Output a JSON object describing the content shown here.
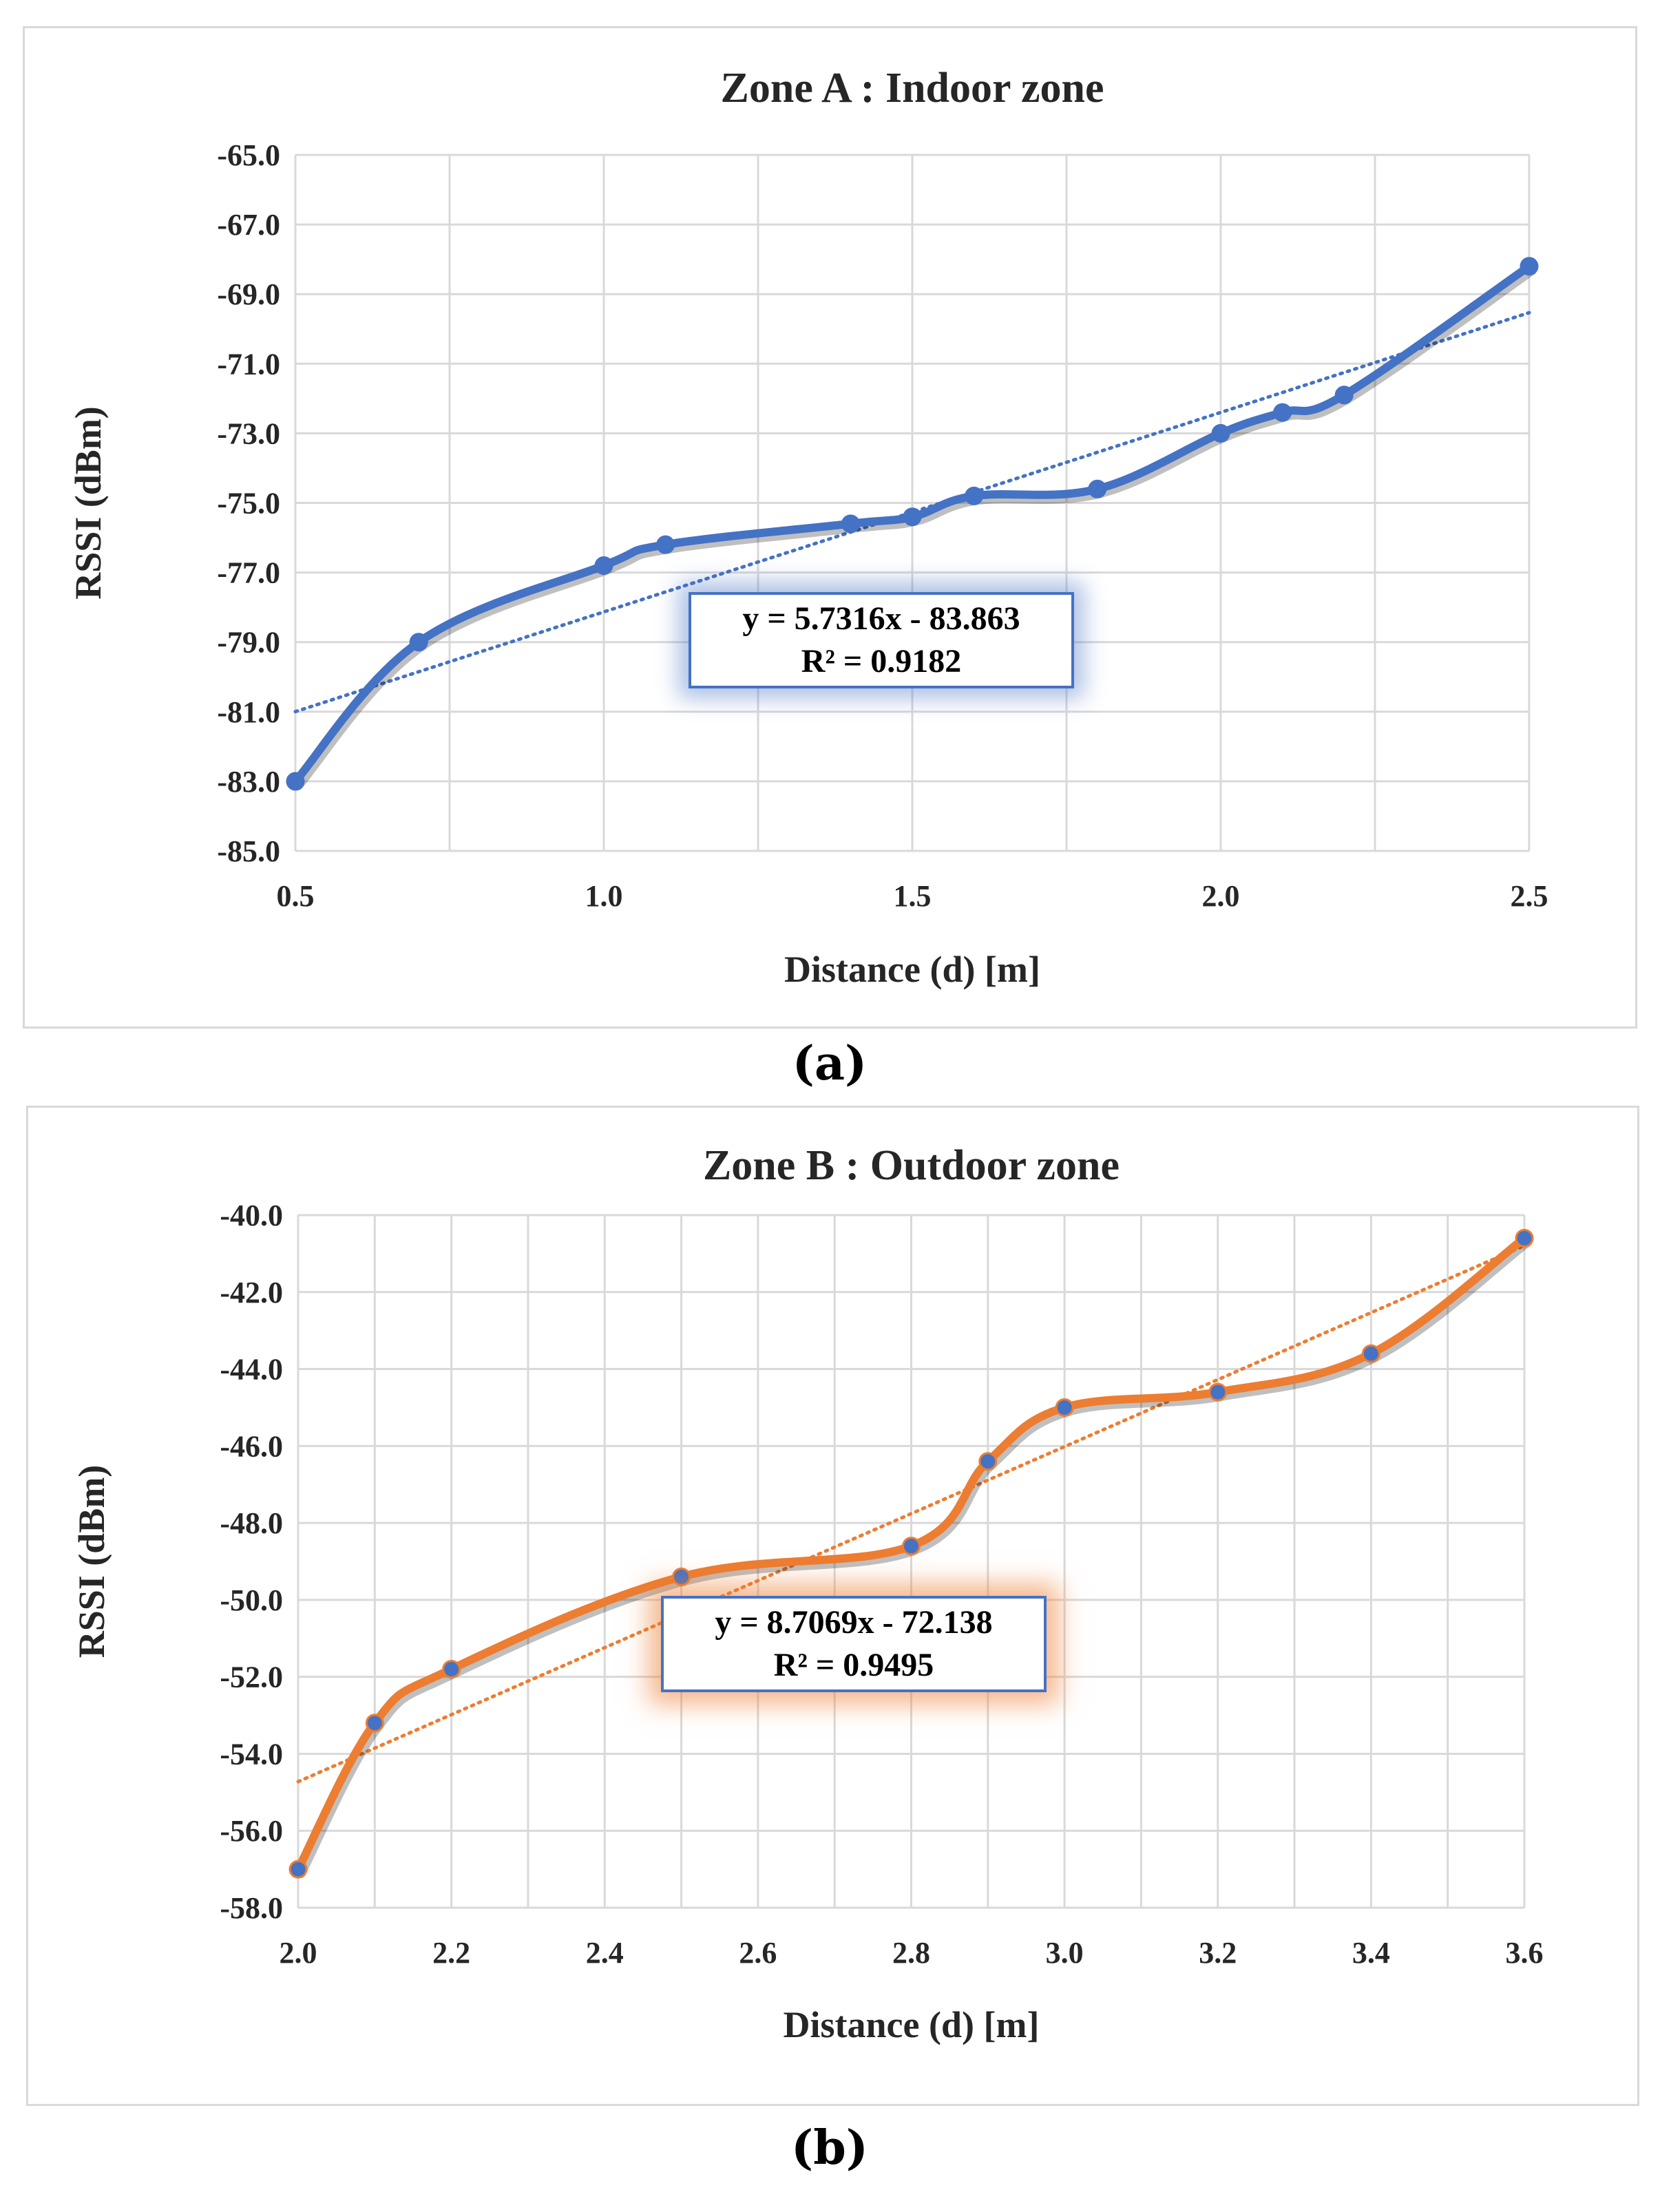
{
  "colors": {
    "series_a": "#4472c4",
    "series_b": "#ed7d31",
    "marker_b": "#4472c4",
    "grid": "#d9d9d9"
  },
  "captions": {
    "a": "(a)",
    "b": "(b)"
  },
  "chart_data": [
    {
      "type": "line",
      "title": "Zone A : Indoor zone",
      "xlabel": "Distance (d) [m]",
      "ylabel": "RSSI (dBm)",
      "xlim": [
        0.5,
        2.5
      ],
      "ylim": [
        -85.0,
        -65.0
      ],
      "x_ticks": [
        "0.5",
        "1.0",
        "1.5",
        "2.0",
        "2.5"
      ],
      "y_ticks": [
        "-65.0",
        "-67.0",
        "-69.0",
        "-71.0",
        "-73.0",
        "-75.0",
        "-77.0",
        "-79.0",
        "-81.0",
        "-83.0",
        "-85.0"
      ],
      "series": [
        {
          "name": "RSSI",
          "x": [
            0.5,
            0.7,
            1.0,
            1.1,
            1.4,
            1.5,
            1.6,
            1.8,
            2.0,
            2.1,
            2.2,
            2.5
          ],
          "values": [
            -83.0,
            -79.0,
            -76.8,
            -76.2,
            -75.6,
            -75.4,
            -74.8,
            -74.6,
            -73.0,
            -72.4,
            -71.9,
            -68.2
          ]
        }
      ],
      "trendline": {
        "type": "linear",
        "slope": 5.7316,
        "intercept": -83.863,
        "equation": "y = 5.7316x - 83.863",
        "r2": "R² = 0.9182"
      }
    },
    {
      "type": "line",
      "title": "Zone B : Outdoor zone",
      "xlabel": "Distance (d) [m]",
      "ylabel": "RSSI (dBm)",
      "xlim": [
        2.0,
        3.6
      ],
      "ylim": [
        -58.0,
        -40.0
      ],
      "x_ticks": [
        "2.0",
        "2.2",
        "2.4",
        "2.6",
        "2.8",
        "3.0",
        "3.2",
        "3.4",
        "3.6"
      ],
      "y_ticks": [
        "-40.0",
        "-42.0",
        "-44.0",
        "-46.0",
        "-48.0",
        "-50.0",
        "-52.0",
        "-54.0",
        "-56.0",
        "-58.0"
      ],
      "series": [
        {
          "name": "RSSI",
          "x": [
            2.0,
            2.1,
            2.2,
            2.5,
            2.8,
            2.9,
            3.0,
            3.2,
            3.4,
            3.6
          ],
          "values": [
            -57.0,
            -53.2,
            -51.8,
            -49.4,
            -48.6,
            -46.4,
            -45.0,
            -44.6,
            -43.6,
            -40.6
          ]
        }
      ],
      "trendline": {
        "type": "linear",
        "slope": 8.7069,
        "intercept": -72.138,
        "equation": "y = 8.7069x - 72.138",
        "r2": "R² = 0.9495"
      }
    }
  ]
}
